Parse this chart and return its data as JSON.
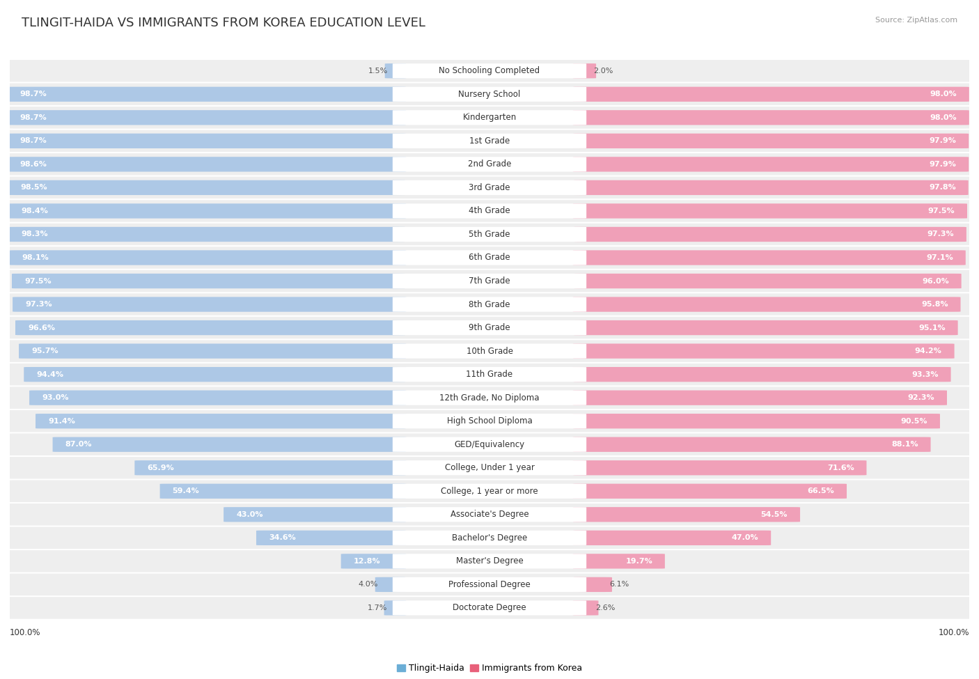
{
  "title": "TLINGIT-HAIDA VS IMMIGRANTS FROM KOREA EDUCATION LEVEL",
  "source": "Source: ZipAtlas.com",
  "categories": [
    "No Schooling Completed",
    "Nursery School",
    "Kindergarten",
    "1st Grade",
    "2nd Grade",
    "3rd Grade",
    "4th Grade",
    "5th Grade",
    "6th Grade",
    "7th Grade",
    "8th Grade",
    "9th Grade",
    "10th Grade",
    "11th Grade",
    "12th Grade, No Diploma",
    "High School Diploma",
    "GED/Equivalency",
    "College, Under 1 year",
    "College, 1 year or more",
    "Associate's Degree",
    "Bachelor's Degree",
    "Master's Degree",
    "Professional Degree",
    "Doctorate Degree"
  ],
  "tlingit_haida": [
    1.5,
    98.7,
    98.7,
    98.7,
    98.6,
    98.5,
    98.4,
    98.3,
    98.1,
    97.5,
    97.3,
    96.6,
    95.7,
    94.4,
    93.0,
    91.4,
    87.0,
    65.9,
    59.4,
    43.0,
    34.6,
    12.8,
    4.0,
    1.7
  ],
  "korea": [
    2.0,
    98.0,
    98.0,
    97.9,
    97.9,
    97.8,
    97.5,
    97.3,
    97.1,
    96.0,
    95.8,
    95.1,
    94.2,
    93.3,
    92.3,
    90.5,
    88.1,
    71.6,
    66.5,
    54.5,
    47.0,
    19.7,
    6.1,
    2.6
  ],
  "blue_color": "#adc8e6",
  "pink_color": "#f0a0b8",
  "row_bg": "#eeeeee",
  "legend_blue": "#6baed6",
  "legend_pink": "#e8607a",
  "title_fontsize": 13,
  "label_fontsize": 8.5,
  "value_fontsize": 8.0
}
